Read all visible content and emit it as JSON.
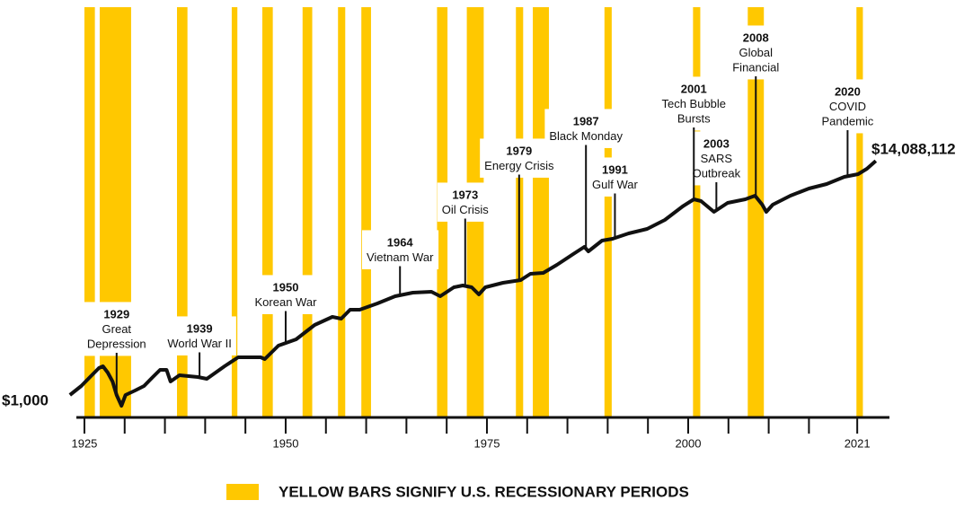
{
  "chart_data": {
    "type": "line",
    "yscale": "log",
    "color": "#111111",
    "recession_color": "#ffc800",
    "recession_legend": "YELLOW BARS SIGNIFY U.S. RECESSIONARY PERIODS",
    "xlim": [
      1924,
      2025
    ],
    "xticks": [
      1925,
      1950,
      1975,
      2000,
      2021
    ],
    "minor_xticks": [
      1930,
      1935,
      1940,
      1945,
      1955,
      1960,
      1965,
      1970,
      1980,
      1985,
      1990,
      1995,
      2005,
      2010,
      2015
    ],
    "ylim": [
      400,
      7500000000
    ],
    "x": [
      1923.2,
      1924.6,
      1925.7,
      1926.8,
      1927.3,
      1927.9,
      1928.5,
      1929.0,
      1929.6,
      1930.1,
      1931.3,
      1932.4,
      1933.5,
      1934.4,
      1935.2,
      1935.7,
      1936.8,
      1939.1,
      1940.2,
      1942.4,
      1944.1,
      1946.9,
      1947.4,
      1949.1,
      1951.3,
      1953.6,
      1955.8,
      1956.9,
      1958.0,
      1959.2,
      1961.4,
      1963.6,
      1965.8,
      1968.1,
      1969.2,
      1970.9,
      1972.0,
      1973.1,
      1974.0,
      1974.8,
      1977.0,
      1979.2,
      1980.4,
      1982.0,
      1983.7,
      1985.9,
      1987.1,
      1987.6,
      1989.3,
      1990.6,
      1992.6,
      1994.9,
      1997.1,
      1999.3,
      2000.7,
      2001.6,
      2003.2,
      2004.9,
      2007.1,
      2008.3,
      2009.2,
      2009.7,
      2010.5,
      2012.7,
      2015.0,
      2017.2,
      2019.4,
      2021.1,
      2022.2,
      2023.3
    ],
    "values": [
      1000,
      1442,
      2080,
      3000,
      3228,
      2500,
      1733,
      1000,
      644,
      1000,
      1200,
      1442,
      2080,
      2787,
      2787,
      1733,
      2239,
      2080,
      1932,
      3228,
      4656,
      4656,
      4328,
      7499,
      9705,
      17420,
      24210,
      22540,
      32510,
      32510,
      41980,
      56230,
      65160,
      67610,
      56230,
      81280,
      87300,
      81280,
      60530,
      81280,
      97500,
      108900,
      140600,
      145900,
      202800,
      326600,
      422700,
      351600,
      545800,
      587500,
      731100,
      879000,
      1268000,
      2198000,
      2944000,
      2735000,
      1762000,
      2541000,
      2944000,
      3412000,
      2366000,
      1762000,
      2366000,
      3412000,
      4571000,
      5495000,
      7362000,
      8222000,
      10230000,
      14088112
    ],
    "value_labels": [
      "$1,000",
      null,
      null,
      null,
      null,
      null,
      null,
      null,
      null,
      null,
      null,
      null,
      null,
      null,
      null,
      null,
      null,
      null,
      null,
      null,
      null,
      null,
      null,
      null,
      null,
      null,
      null,
      null,
      null,
      null,
      null,
      null,
      null,
      null,
      null,
      null,
      null,
      null,
      null,
      null,
      null,
      null,
      null,
      null,
      null,
      null,
      null,
      null,
      null,
      null,
      null,
      null,
      null,
      null,
      null,
      null,
      null,
      null,
      null,
      null,
      null,
      null,
      null,
      null,
      null,
      null,
      null,
      null,
      null,
      "$14,088,112"
    ],
    "recessions": [
      {
        "start": 1925.0,
        "end": 1926.3
      },
      {
        "start": 1926.9,
        "end": 1930.8
      },
      {
        "start": 1936.5,
        "end": 1937.8
      },
      {
        "start": 1943.3,
        "end": 1944.0
      },
      {
        "start": 1947.1,
        "end": 1948.4
      },
      {
        "start": 1952.1,
        "end": 1953.3
      },
      {
        "start": 1956.5,
        "end": 1957.4
      },
      {
        "start": 1959.4,
        "end": 1960.6
      },
      {
        "start": 1968.8,
        "end": 1970.1
      },
      {
        "start": 1972.5,
        "end": 1974.6
      },
      {
        "start": 1978.6,
        "end": 1979.5
      },
      {
        "start": 1980.7,
        "end": 1982.7
      },
      {
        "start": 1989.6,
        "end": 1990.5
      },
      {
        "start": 2000.6,
        "end": 2001.5
      },
      {
        "start": 2007.4,
        "end": 2009.4
      },
      {
        "start": 2020.9,
        "end": 2021.7
      }
    ],
    "annotations": [
      {
        "year": "1929",
        "lines": [
          "Great",
          "Depression"
        ],
        "x": 1929.0
      },
      {
        "year": "1939",
        "lines": [
          "World War II"
        ],
        "x": 1939.3
      },
      {
        "year": "1950",
        "lines": [
          "Korean War"
        ],
        "x": 1950.0
      },
      {
        "year": "1964",
        "lines": [
          "Vietnam War"
        ],
        "x": 1964.2
      },
      {
        "year": "1973",
        "lines": [
          "Oil Crisis"
        ],
        "x": 1972.3
      },
      {
        "year": "1979",
        "lines": [
          "Energy Crisis"
        ],
        "x": 1979.0
      },
      {
        "year": "1987",
        "lines": [
          "Black Monday"
        ],
        "x": 1987.3
      },
      {
        "year": "1991",
        "lines": [
          "Gulf War"
        ],
        "x": 1990.9
      },
      {
        "year": "2001",
        "lines": [
          "Tech Bubble",
          "Bursts"
        ],
        "x": 2000.7
      },
      {
        "year": "2003",
        "lines": [
          "SARS",
          "Outbreak"
        ],
        "x": 2003.5
      },
      {
        "year": "2008",
        "lines": [
          "Global",
          "Financial"
        ],
        "x": 2008.4
      },
      {
        "year": "2020",
        "lines": [
          "COVID",
          "Pandemic"
        ],
        "x": 2019.8
      }
    ]
  }
}
